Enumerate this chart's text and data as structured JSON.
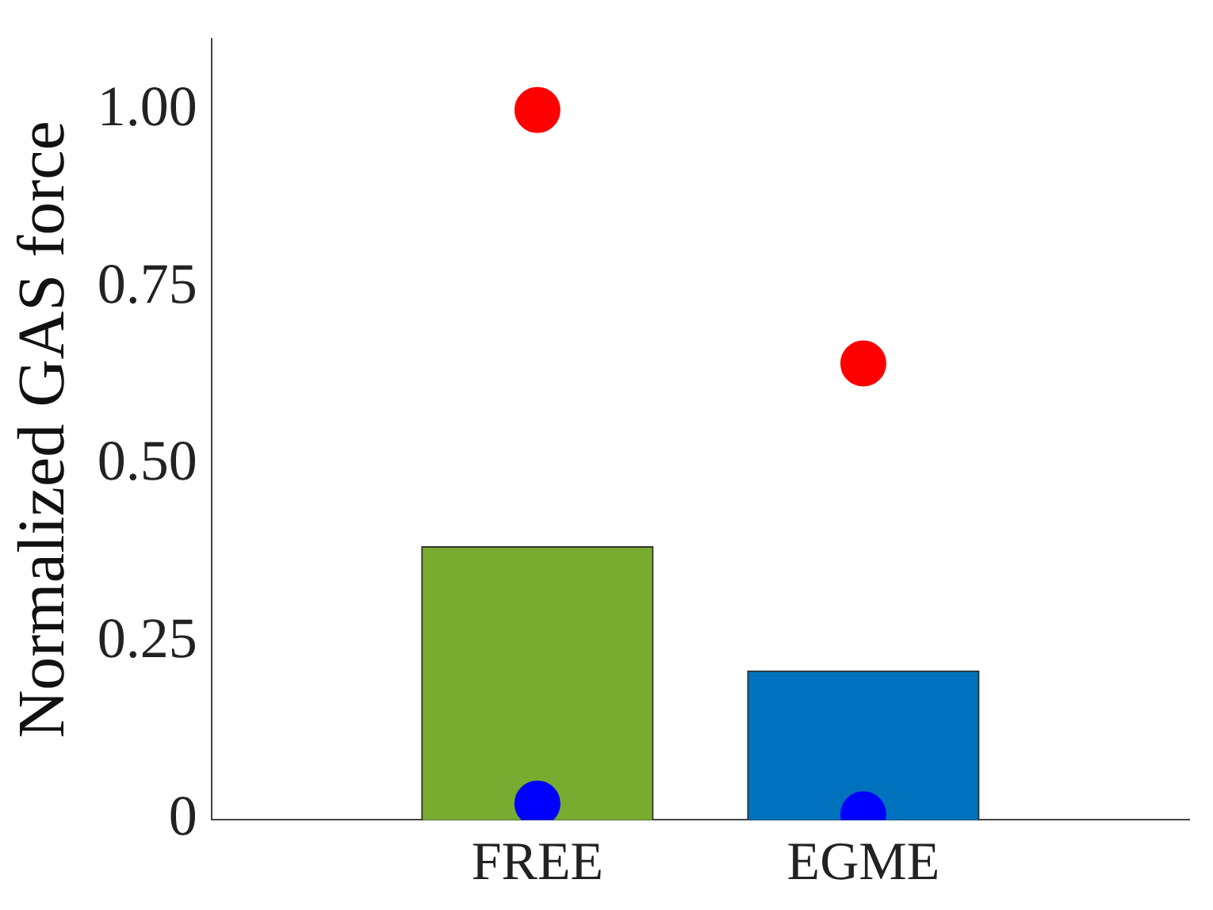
{
  "chart_data": {
    "type": "bar",
    "ylabel": "Normalized GAS force",
    "categories": [
      "FREE",
      "EGME"
    ],
    "series": [
      {
        "colors": [
          "#77ac30",
          "#0072bd"
        ],
        "values": [
          0.385,
          0.21
        ]
      },
      {
        "type": "scatter",
        "x": [
          "FREE",
          "EGME"
        ],
        "color": "#ff0000",
        "values": [
          1.0,
          0.643
        ]
      },
      {
        "type": "scatter",
        "x": [
          "FREE",
          "EGME"
        ],
        "color": "#0000ff",
        "values": [
          0.023,
          0.008
        ]
      }
    ],
    "ylim": [
      0,
      1.1
    ],
    "yticks": [
      0,
      {
        "value": 0.25,
        "label": "0.25"
      },
      {
        "value": 0.5,
        "label": "0.50"
      },
      {
        "value": 0.75,
        "label": "0.75"
      },
      {
        "value": 1,
        "label": "1.00"
      }
    ],
    "grid": false,
    "legend": false,
    "marker": "circle"
  }
}
